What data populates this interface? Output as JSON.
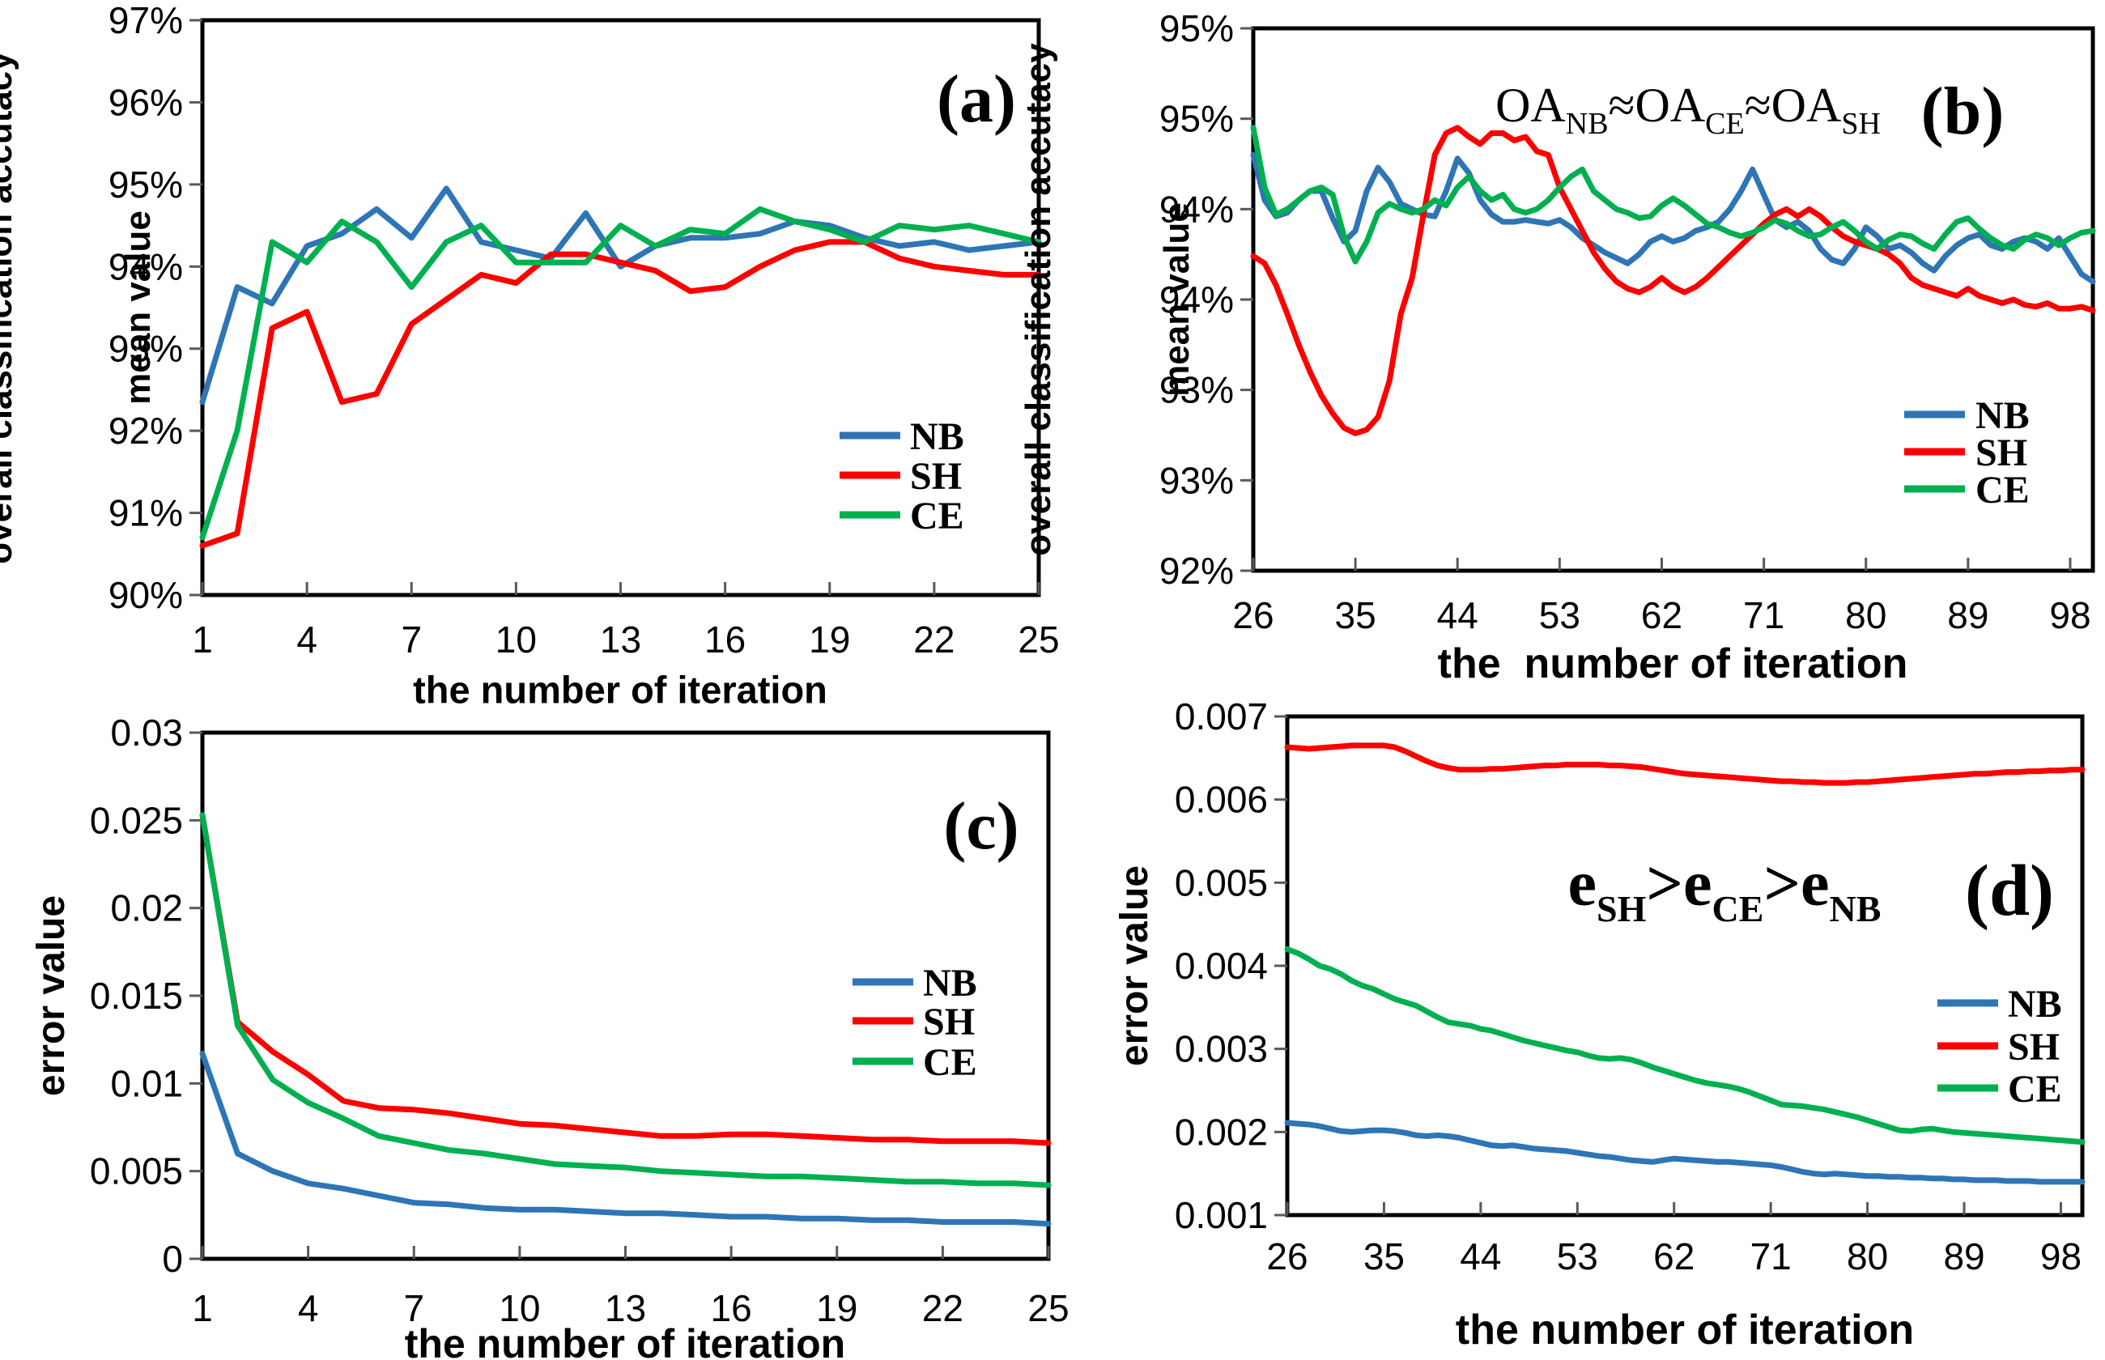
{
  "figure": {
    "background": "#ffffff"
  },
  "colors": {
    "nb_blue": "#2E75B6",
    "sh_red": "#FF0000",
    "ce_green": "#00B050",
    "axis_black": "#000000",
    "tick_gray": "#595959"
  },
  "chart_data": [
    {
      "id": "a",
      "type": "line",
      "panel_label": "(a)",
      "ylabel_lines": [
        "overall classification accutacy",
        "mean value"
      ],
      "xlabel": "the number of iteration",
      "xlim": [
        1,
        25
      ],
      "ylim": [
        90,
        97
      ],
      "grid": false,
      "legend_position": "inside-right",
      "x_ticks": [
        1,
        4,
        7,
        10,
        13,
        16,
        19,
        22,
        25
      ],
      "x_tick_labels": [
        "1",
        "4",
        "7",
        "10",
        "13",
        "16",
        "19",
        "22",
        "25"
      ],
      "y_ticks": [
        90,
        91,
        92,
        93,
        94,
        95,
        96,
        97
      ],
      "y_tick_labels": [
        "90%",
        "91%",
        "92%",
        "93%",
        "94%",
        "95%",
        "96%",
        "97%"
      ],
      "series": [
        {
          "name": "NB",
          "color": "#2E75B6",
          "x_start": 1,
          "x_step": 1,
          "values": [
            92.35,
            93.75,
            93.55,
            94.25,
            94.4,
            94.7,
            94.35,
            94.95,
            94.3,
            94.2,
            94.1,
            94.65,
            94.0,
            94.25,
            94.35,
            94.35,
            94.4,
            94.55,
            94.5,
            94.35,
            94.25,
            94.3,
            94.2,
            94.25,
            94.3
          ]
        },
        {
          "name": "SH",
          "color": "#FF0000",
          "x_start": 1,
          "x_step": 1,
          "values": [
            90.6,
            90.75,
            93.25,
            93.45,
            92.35,
            92.45,
            93.3,
            93.6,
            93.9,
            93.8,
            94.15,
            94.15,
            94.05,
            93.95,
            93.7,
            93.75,
            94.0,
            94.2,
            94.3,
            94.3,
            94.1,
            94.0,
            93.95,
            93.9,
            93.9
          ]
        },
        {
          "name": "CE",
          "color": "#00B050",
          "x_start": 1,
          "x_step": 1,
          "values": [
            90.7,
            92.0,
            94.3,
            94.05,
            94.55,
            94.3,
            93.75,
            94.3,
            94.5,
            94.05,
            94.05,
            94.05,
            94.5,
            94.25,
            94.45,
            94.4,
            94.7,
            94.55,
            94.45,
            94.3,
            94.5,
            94.45,
            94.5,
            94.4,
            94.3
          ]
        }
      ]
    },
    {
      "id": "b",
      "type": "line",
      "panel_label": "(b)",
      "ylabel_lines": [
        "overall classification accutacy",
        "mean value"
      ],
      "xlabel": "the  number of iteration",
      "xlim": [
        26,
        100
      ],
      "ylim": [
        92,
        95
      ],
      "grid": false,
      "legend_position": "inside-right",
      "annotation": {
        "parts": [
          {
            "text": "OA"
          },
          {
            "text": "NB",
            "sub": true
          },
          {
            "text": "≈"
          },
          {
            "text": "OA"
          },
          {
            "text": "CE",
            "sub": true
          },
          {
            "text": "≈"
          },
          {
            "text": "OA"
          },
          {
            "text": "SH",
            "sub": true
          }
        ]
      },
      "x_ticks": [
        26,
        35,
        44,
        53,
        62,
        71,
        80,
        89,
        98
      ],
      "x_tick_labels": [
        "26",
        "35",
        "44",
        "53",
        "62",
        "71",
        "80",
        "89",
        "98"
      ],
      "y_ticks": [
        92,
        92.5,
        93,
        93.5,
        94,
        94.5,
        95
      ],
      "y_tick_labels": [
        "92%",
        "93%",
        "93%",
        "94%",
        "94%",
        "95%",
        "95%"
      ],
      "series": [
        {
          "name": "NB",
          "color": "#2E75B6",
          "x_start": 26,
          "x_step": 1,
          "values": [
            94.3,
            94.05,
            93.96,
            93.98,
            94.05,
            94.1,
            94.1,
            93.95,
            93.82,
            93.88,
            94.1,
            94.23,
            94.15,
            94.03,
            94.0,
            93.97,
            93.96,
            94.1,
            94.28,
            94.2,
            94.05,
            93.97,
            93.93,
            93.93,
            93.94,
            93.93,
            93.92,
            93.94,
            93.9,
            93.84,
            93.8,
            93.76,
            93.73,
            93.7,
            93.75,
            93.82,
            93.85,
            93.82,
            93.84,
            93.88,
            93.9,
            93.93,
            94.0,
            94.1,
            94.22,
            94.08,
            93.94,
            93.9,
            93.93,
            93.88,
            93.78,
            93.72,
            93.7,
            93.78,
            93.9,
            93.85,
            93.78,
            93.8,
            93.76,
            93.7,
            93.66,
            93.74,
            93.8,
            93.84,
            93.86,
            93.8,
            93.78,
            93.82,
            93.84,
            93.82,
            93.78,
            93.84,
            93.74,
            93.64,
            93.6
          ]
        },
        {
          "name": "SH",
          "color": "#FF0000",
          "x_start": 26,
          "x_step": 1,
          "values": [
            93.74,
            93.7,
            93.58,
            93.42,
            93.25,
            93.1,
            92.97,
            92.87,
            92.79,
            92.76,
            92.78,
            92.85,
            93.05,
            93.42,
            93.62,
            93.97,
            94.3,
            94.42,
            94.45,
            94.4,
            94.36,
            94.42,
            94.42,
            94.38,
            94.4,
            94.32,
            94.3,
            94.12,
            94.0,
            93.88,
            93.76,
            93.67,
            93.6,
            93.56,
            93.54,
            93.57,
            93.62,
            93.57,
            93.54,
            93.57,
            93.62,
            93.68,
            93.74,
            93.8,
            93.86,
            93.92,
            93.97,
            94.0,
            93.96,
            94.0,
            93.96,
            93.9,
            93.85,
            93.82,
            93.8,
            93.78,
            93.75,
            93.7,
            93.62,
            93.58,
            93.56,
            93.54,
            93.52,
            93.56,
            93.52,
            93.5,
            93.48,
            93.5,
            93.47,
            93.46,
            93.48,
            93.45,
            93.45,
            93.46,
            93.44
          ]
        },
        {
          "name": "CE",
          "color": "#00B050",
          "x_start": 26,
          "x_step": 1,
          "values": [
            94.45,
            94.12,
            93.97,
            94.0,
            94.05,
            94.1,
            94.12,
            94.08,
            93.85,
            93.71,
            93.82,
            93.98,
            94.03,
            94.0,
            93.98,
            94.0,
            94.05,
            94.02,
            94.12,
            94.18,
            94.1,
            94.05,
            94.08,
            94.0,
            93.98,
            94.0,
            94.05,
            94.12,
            94.18,
            94.22,
            94.1,
            94.05,
            94.0,
            93.98,
            93.95,
            93.96,
            94.02,
            94.06,
            94.02,
            93.97,
            93.92,
            93.9,
            93.87,
            93.85,
            93.87,
            93.9,
            93.94,
            93.92,
            93.88,
            93.85,
            93.86,
            93.9,
            93.93,
            93.88,
            93.82,
            93.78,
            93.83,
            93.86,
            93.85,
            93.81,
            93.78,
            93.86,
            93.93,
            93.95,
            93.89,
            93.84,
            93.8,
            93.78,
            93.83,
            93.86,
            93.84,
            93.8,
            93.84,
            93.87,
            93.88
          ]
        }
      ]
    },
    {
      "id": "c",
      "type": "line",
      "panel_label": "(c)",
      "ylabel_lines": [
        "error value"
      ],
      "xlabel": "the number of iteration",
      "xlim": [
        1,
        25
      ],
      "ylim": [
        0,
        0.03
      ],
      "grid": false,
      "legend_position": "inside-right",
      "x_ticks": [
        1,
        4,
        7,
        10,
        13,
        16,
        19,
        22,
        25
      ],
      "x_tick_labels": [
        "1",
        "4",
        "7",
        "10",
        "13",
        "16",
        "19",
        "22",
        "25"
      ],
      "y_ticks": [
        0,
        0.005,
        0.01,
        0.015,
        0.02,
        0.025,
        0.03
      ],
      "y_tick_labels": [
        "0",
        "0.005",
        "0.01",
        "0.015",
        "0.02",
        "0.025",
        "0.03"
      ],
      "series": [
        {
          "name": "NB",
          "color": "#2E75B6",
          "x_start": 1,
          "x_step": 1,
          "values": [
            0.0117,
            0.006,
            0.005,
            0.0043,
            0.004,
            0.0036,
            0.0032,
            0.0031,
            0.0029,
            0.0028,
            0.0028,
            0.0027,
            0.0026,
            0.0026,
            0.0025,
            0.0024,
            0.0024,
            0.0023,
            0.0023,
            0.0022,
            0.0022,
            0.0021,
            0.0021,
            0.0021,
            0.002
          ]
        },
        {
          "name": "SH",
          "color": "#FF0000",
          "x_start": 1,
          "x_step": 1,
          "values": [
            0.0253,
            0.0135,
            0.0118,
            0.0105,
            0.009,
            0.0086,
            0.0085,
            0.0083,
            0.008,
            0.0077,
            0.0076,
            0.0074,
            0.0072,
            0.007,
            0.007,
            0.0071,
            0.0071,
            0.007,
            0.0069,
            0.0068,
            0.0068,
            0.0067,
            0.0067,
            0.0067,
            0.0066
          ]
        },
        {
          "name": "CE",
          "color": "#00B050",
          "x_start": 1,
          "x_step": 1,
          "values": [
            0.0253,
            0.0133,
            0.0102,
            0.0089,
            0.008,
            0.007,
            0.0066,
            0.0062,
            0.006,
            0.0057,
            0.0054,
            0.0053,
            0.0052,
            0.005,
            0.0049,
            0.0048,
            0.0047,
            0.0047,
            0.0046,
            0.0045,
            0.0044,
            0.0044,
            0.0043,
            0.0043,
            0.0042
          ]
        }
      ]
    },
    {
      "id": "d",
      "type": "line",
      "panel_label": "(d)",
      "ylabel_lines": [
        "error value"
      ],
      "xlabel": "the number of iteration",
      "xlim": [
        26,
        100
      ],
      "ylim": [
        0.001,
        0.007
      ],
      "grid": false,
      "legend_position": "inside-right",
      "annotation": {
        "parts": [
          {
            "text": "e"
          },
          {
            "text": "SH",
            "sub": true
          },
          {
            "text": ">"
          },
          {
            "text": "e"
          },
          {
            "text": "CE",
            "sub": true
          },
          {
            "text": ">"
          },
          {
            "text": "e"
          },
          {
            "text": "NB",
            "sub": true
          }
        ]
      },
      "x_ticks": [
        26,
        35,
        44,
        53,
        62,
        71,
        80,
        89,
        98
      ],
      "x_tick_labels": [
        "26",
        "35",
        "44",
        "53",
        "62",
        "71",
        "80",
        "89",
        "98"
      ],
      "y_ticks": [
        0.001,
        0.002,
        0.003,
        0.004,
        0.005,
        0.006,
        0.007
      ],
      "y_tick_labels": [
        "0.001",
        "0.002",
        "0.003",
        "0.004",
        "0.005",
        "0.006",
        "0.007"
      ],
      "series": [
        {
          "name": "NB",
          "color": "#2E75B6",
          "x_start": 26,
          "x_step": 1,
          "values": [
            0.00211,
            0.0021,
            0.00209,
            0.00207,
            0.00204,
            0.00201,
            0.002,
            0.00201,
            0.00202,
            0.00202,
            0.00201,
            0.00199,
            0.00196,
            0.00195,
            0.00196,
            0.00195,
            0.00193,
            0.0019,
            0.00187,
            0.00184,
            0.00183,
            0.00184,
            0.00182,
            0.0018,
            0.00179,
            0.00178,
            0.00177,
            0.00175,
            0.00173,
            0.00171,
            0.0017,
            0.00168,
            0.00166,
            0.00165,
            0.00164,
            0.00166,
            0.00168,
            0.00167,
            0.00166,
            0.00165,
            0.00164,
            0.00164,
            0.00163,
            0.00162,
            0.00161,
            0.0016,
            0.00158,
            0.00155,
            0.00152,
            0.0015,
            0.00149,
            0.0015,
            0.00149,
            0.00148,
            0.00147,
            0.00147,
            0.00146,
            0.00146,
            0.00145,
            0.00145,
            0.00144,
            0.00144,
            0.00143,
            0.00143,
            0.00142,
            0.00142,
            0.00142,
            0.00141,
            0.00141,
            0.00141,
            0.0014,
            0.0014,
            0.0014,
            0.0014,
            0.0014
          ]
        },
        {
          "name": "SH",
          "color": "#FF0000",
          "x_start": 26,
          "x_step": 1,
          "values": [
            0.00663,
            0.00662,
            0.00661,
            0.00662,
            0.00663,
            0.00664,
            0.00665,
            0.00665,
            0.00665,
            0.00665,
            0.00663,
            0.00658,
            0.00652,
            0.00646,
            0.00641,
            0.00638,
            0.00636,
            0.00636,
            0.00636,
            0.00637,
            0.00637,
            0.00638,
            0.00639,
            0.0064,
            0.00641,
            0.00641,
            0.00642,
            0.00642,
            0.00642,
            0.00642,
            0.00641,
            0.00641,
            0.0064,
            0.00639,
            0.00637,
            0.00635,
            0.00633,
            0.00631,
            0.0063,
            0.00629,
            0.00628,
            0.00627,
            0.00626,
            0.00625,
            0.00624,
            0.00623,
            0.00622,
            0.00622,
            0.00621,
            0.00621,
            0.0062,
            0.0062,
            0.0062,
            0.00621,
            0.00621,
            0.00622,
            0.00623,
            0.00624,
            0.00625,
            0.00626,
            0.00627,
            0.00628,
            0.00629,
            0.0063,
            0.00631,
            0.00631,
            0.00632,
            0.00633,
            0.00633,
            0.00634,
            0.00634,
            0.00635,
            0.00635,
            0.00636,
            0.00636
          ]
        },
        {
          "name": "CE",
          "color": "#00B050",
          "x_start": 26,
          "x_step": 1,
          "values": [
            0.0042,
            0.00415,
            0.00408,
            0.004,
            0.00396,
            0.0039,
            0.00382,
            0.00376,
            0.00372,
            0.00366,
            0.0036,
            0.00356,
            0.00352,
            0.00345,
            0.00338,
            0.00332,
            0.0033,
            0.00328,
            0.00324,
            0.00322,
            0.00318,
            0.00314,
            0.0031,
            0.00307,
            0.00304,
            0.00301,
            0.00298,
            0.00296,
            0.00292,
            0.00289,
            0.00288,
            0.00289,
            0.00287,
            0.00283,
            0.00278,
            0.00274,
            0.0027,
            0.00266,
            0.00262,
            0.00259,
            0.00257,
            0.00255,
            0.00252,
            0.00248,
            0.00243,
            0.00238,
            0.00233,
            0.00232,
            0.00231,
            0.00229,
            0.00227,
            0.00224,
            0.00221,
            0.00218,
            0.00214,
            0.0021,
            0.00206,
            0.00202,
            0.00201,
            0.00203,
            0.00204,
            0.00202,
            0.002,
            0.00199,
            0.00198,
            0.00197,
            0.00196,
            0.00195,
            0.00194,
            0.00193,
            0.00192,
            0.00191,
            0.0019,
            0.00189,
            0.00188
          ]
        }
      ]
    }
  ]
}
